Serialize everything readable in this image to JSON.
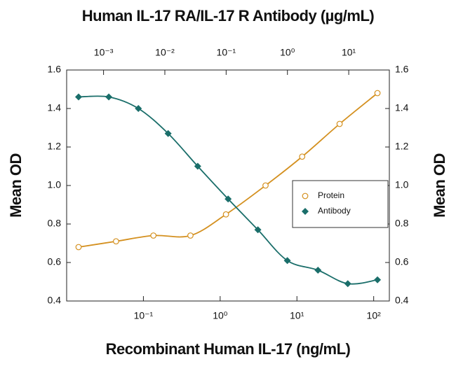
{
  "chart_data": {
    "type": "scatter",
    "title": "Human IL-17 RA/IL-17 R Antibody (µg/mL)",
    "xlabel": "Recombinant Human IL-17 (ng/mL)",
    "ylabel": "Mean OD",
    "y2label": "Mean OD",
    "xscale": "log",
    "xlim": [
      0.01,
      160
    ],
    "xticks": [
      {
        "value": 0.1,
        "label": "10⁻¹"
      },
      {
        "value": 1,
        "label": "10⁰"
      },
      {
        "value": 10,
        "label": "10¹"
      },
      {
        "value": 100,
        "label": "10²"
      }
    ],
    "x2lim": [
      0.00025,
      46
    ],
    "x2ticks": [
      {
        "value": 0.001,
        "label": "10⁻³"
      },
      {
        "value": 0.01,
        "label": "10⁻²"
      },
      {
        "value": 0.1,
        "label": "10⁻¹"
      },
      {
        "value": 1,
        "label": "10⁰"
      },
      {
        "value": 10,
        "label": "10¹"
      }
    ],
    "ylim": [
      0.4,
      1.6
    ],
    "yticks": [
      {
        "value": 0.4,
        "label": "0.4"
      },
      {
        "value": 0.6,
        "label": "0.6"
      },
      {
        "value": 0.8,
        "label": "0.8"
      },
      {
        "value": 1.0,
        "label": "1.0"
      },
      {
        "value": 1.2,
        "label": "1.2"
      },
      {
        "value": 1.4,
        "label": "1.4"
      },
      {
        "value": 1.6,
        "label": "1.6"
      }
    ],
    "legend": "right",
    "series": [
      {
        "name": "Protein",
        "color": "#d4901f",
        "marker": "open-circle",
        "x": [
          0.0143,
          0.044,
          0.135,
          0.41,
          1.19,
          3.9,
          11.7,
          36,
          112
        ],
        "values": [
          0.68,
          0.71,
          0.74,
          0.74,
          0.85,
          1.0,
          1.15,
          1.32,
          1.48
        ]
      },
      {
        "name": "Antibody",
        "color": "#1a6e6a",
        "marker": "diamond",
        "x": [
          0.0143,
          0.0354,
          0.086,
          0.21,
          0.51,
          1.27,
          3.1,
          7.5,
          18.8,
          46,
          112
        ],
        "values": [
          1.46,
          1.46,
          1.4,
          1.27,
          1.1,
          0.93,
          0.77,
          0.61,
          0.56,
          0.49,
          0.51
        ]
      }
    ]
  }
}
